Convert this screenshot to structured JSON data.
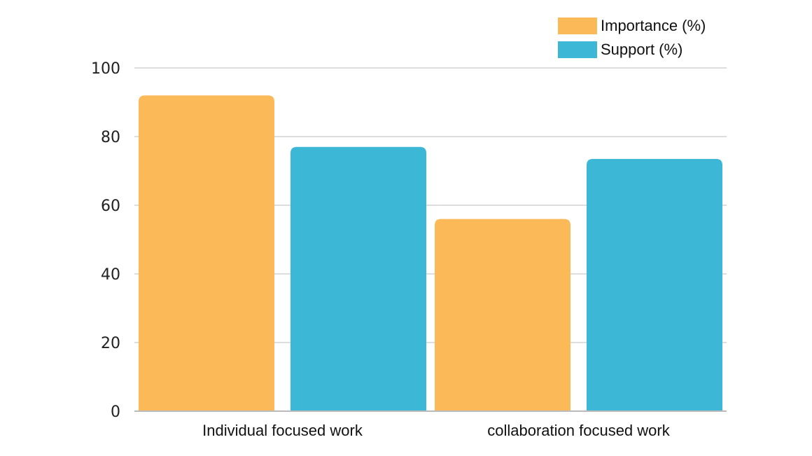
{
  "chart_data": {
    "type": "bar",
    "categories": [
      "Individual focused work",
      "collaboration focused work"
    ],
    "series": [
      {
        "name": "Importance (%)",
        "color": "#FBB957",
        "values": [
          92,
          56
        ]
      },
      {
        "name": "Support (%)",
        "color": "#3DB7D6",
        "values": [
          77,
          73.5
        ]
      }
    ],
    "y_ticks": [
      0,
      20,
      40,
      60,
      80,
      100
    ],
    "ylim": [
      0,
      100
    ],
    "grid": true,
    "legend_position": "top-right",
    "gridline_color": "#DDDDDD",
    "axis_color": "#BBBBBB"
  }
}
